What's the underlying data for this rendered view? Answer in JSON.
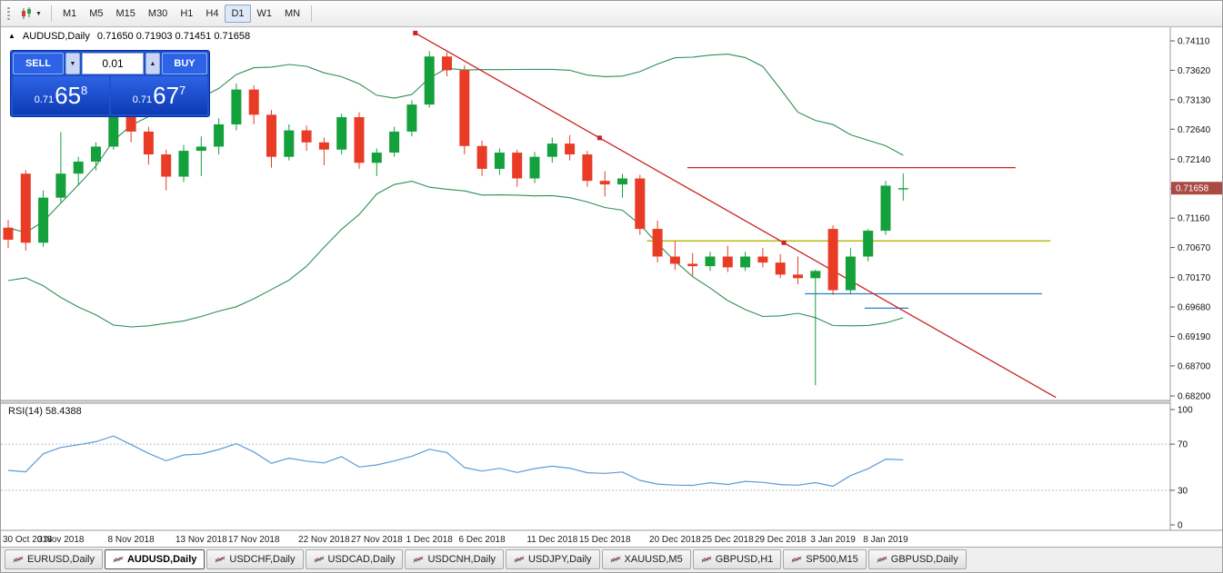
{
  "icons": {
    "collapse": "▲",
    "caret_down": "▼",
    "caret_up": "▲",
    "toolbar_caret": "▼"
  },
  "toolbar": {
    "timeframes": [
      "M1",
      "M5",
      "M15",
      "M30",
      "H1",
      "H4",
      "D1",
      "W1",
      "MN"
    ],
    "active_timeframe": "D1"
  },
  "chart": {
    "title_symbol": "AUDUSD,Daily",
    "title_ohlc": "0.71650 0.71903 0.71451 0.71658",
    "price_badge": "0.71658",
    "trade_panel": {
      "sell_label": "SELL",
      "buy_label": "BUY",
      "lot_value": "0.01",
      "sell_price": {
        "prefix": "0.71",
        "pips": "65",
        "pipette": "8"
      },
      "buy_price": {
        "prefix": "0.71",
        "pips": "67",
        "pipette": "7"
      }
    },
    "time_scale": [
      {
        "i": 0,
        "label": "30 Oct 2018"
      },
      {
        "i": 3,
        "label": "3 Nov 2018"
      },
      {
        "i": 7,
        "label": "8 Nov 2018"
      },
      {
        "i": 11,
        "label": "13 Nov 2018"
      },
      {
        "i": 14,
        "label": "17 Nov 2018"
      },
      {
        "i": 18,
        "label": "22 Nov 2018"
      },
      {
        "i": 21,
        "label": "27 Nov 2018"
      },
      {
        "i": 24,
        "label": "1 Dec 2018"
      },
      {
        "i": 27,
        "label": "6 Dec 2018"
      },
      {
        "i": 31,
        "label": "11 Dec 2018"
      },
      {
        "i": 34,
        "label": "15 Dec 2018"
      },
      {
        "i": 38,
        "label": "20 Dec 2018"
      },
      {
        "i": 41,
        "label": "25 Dec 2018"
      },
      {
        "i": 44,
        "label": "29 Dec 2018"
      },
      {
        "i": 47,
        "label": "3 Jan 2019"
      },
      {
        "i": 50,
        "label": "8 Jan 2019"
      }
    ]
  },
  "rsi_panel": {
    "label": "RSI(14) 58.4388",
    "scale_labels": [
      100,
      70,
      30,
      0
    ],
    "levels": [
      70,
      30
    ]
  },
  "tabs": {
    "items": [
      "EURUSD,Daily",
      "AUDUSD,Daily",
      "USDCHF,Daily",
      "USDCAD,Daily",
      "USDCNH,Daily",
      "USDJPY,Daily",
      "XAUUSD,M5",
      "GBPUSD,H1",
      "SP500,M15",
      "GBPUSD,Daily"
    ],
    "active_index": 1
  },
  "colors": {
    "up": "#14A03A",
    "down": "#E93C26",
    "band": "#2E8F55",
    "trend": "#CC2222",
    "hline_red": "#CC2222",
    "hline_yellow": "#B3B300",
    "hline_blue": "#2E7EC8",
    "rsi": "#5B9BD5",
    "badge": "#A94A44",
    "dotted": "#BBBBBB",
    "frame": "#9A9A9A",
    "panel_blue": "#1B52CC",
    "panel_dark": "#0C3BB4",
    "button_blue": "#2E63E6"
  },
  "chart_data": {
    "type": "candlestick",
    "symbol": "AUDUSD",
    "timeframe": "Daily",
    "price_axis": {
      "min": 0.682,
      "max": 0.7411,
      "labels": [
        0.7411,
        0.7362,
        0.7313,
        0.7264,
        0.7214,
        0.7165,
        0.7116,
        0.7067,
        0.7017,
        0.6968,
        0.6919,
        0.687,
        0.682
      ]
    },
    "rsi_axis": {
      "min": 0,
      "max": 100,
      "labels": [
        100,
        70,
        30,
        0
      ]
    },
    "candles": [
      {
        "t": "30 Oct",
        "o": 0.71,
        "h": 0.7113,
        "l": 0.7066,
        "c": 0.708
      },
      {
        "t": "31 Oct",
        "o": 0.719,
        "h": 0.7196,
        "l": 0.7062,
        "c": 0.7075
      },
      {
        "t": "1 Nov",
        "o": 0.7075,
        "h": 0.7162,
        "l": 0.7068,
        "c": 0.715
      },
      {
        "t": "2 Nov",
        "o": 0.715,
        "h": 0.7259,
        "l": 0.7142,
        "c": 0.719
      },
      {
        "t": "5 Nov",
        "o": 0.719,
        "h": 0.7218,
        "l": 0.717,
        "c": 0.721
      },
      {
        "t": "6 Nov",
        "o": 0.721,
        "h": 0.7242,
        "l": 0.7195,
        "c": 0.7235
      },
      {
        "t": "7 Nov",
        "o": 0.7235,
        "h": 0.7302,
        "l": 0.723,
        "c": 0.7292
      },
      {
        "t": "8 Nov",
        "o": 0.7292,
        "h": 0.731,
        "l": 0.7242,
        "c": 0.726
      },
      {
        "t": "9 Nov",
        "o": 0.726,
        "h": 0.7268,
        "l": 0.7205,
        "c": 0.7222
      },
      {
        "t": "12 Nov",
        "o": 0.7222,
        "h": 0.723,
        "l": 0.7162,
        "c": 0.7185
      },
      {
        "t": "13 Nov",
        "o": 0.7185,
        "h": 0.7238,
        "l": 0.7176,
        "c": 0.7228
      },
      {
        "t": "14 Nov",
        "o": 0.7228,
        "h": 0.7252,
        "l": 0.7186,
        "c": 0.7235
      },
      {
        "t": "15 Nov",
        "o": 0.7235,
        "h": 0.7282,
        "l": 0.7222,
        "c": 0.7272
      },
      {
        "t": "16 Nov",
        "o": 0.7272,
        "h": 0.734,
        "l": 0.7262,
        "c": 0.733
      },
      {
        "t": "19 Nov",
        "o": 0.733,
        "h": 0.7337,
        "l": 0.7272,
        "c": 0.7288
      },
      {
        "t": "20 Nov",
        "o": 0.7288,
        "h": 0.7296,
        "l": 0.72,
        "c": 0.7218
      },
      {
        "t": "21 Nov",
        "o": 0.7218,
        "h": 0.7272,
        "l": 0.7212,
        "c": 0.7262
      },
      {
        "t": "22 Nov",
        "o": 0.7262,
        "h": 0.727,
        "l": 0.7228,
        "c": 0.7242
      },
      {
        "t": "23 Nov",
        "o": 0.7242,
        "h": 0.725,
        "l": 0.7204,
        "c": 0.723
      },
      {
        "t": "26 Nov",
        "o": 0.723,
        "h": 0.729,
        "l": 0.7222,
        "c": 0.7284
      },
      {
        "t": "27 Nov",
        "o": 0.7284,
        "h": 0.7292,
        "l": 0.7198,
        "c": 0.7208
      },
      {
        "t": "28 Nov",
        "o": 0.7208,
        "h": 0.7232,
        "l": 0.7186,
        "c": 0.7225
      },
      {
        "t": "29 Nov",
        "o": 0.7225,
        "h": 0.7268,
        "l": 0.7218,
        "c": 0.726
      },
      {
        "t": "30 Nov",
        "o": 0.726,
        "h": 0.7312,
        "l": 0.7252,
        "c": 0.7305
      },
      {
        "t": "3 Dec",
        "o": 0.7305,
        "h": 0.7394,
        "l": 0.73,
        "c": 0.7385
      },
      {
        "t": "4 Dec",
        "o": 0.7385,
        "h": 0.7392,
        "l": 0.7352,
        "c": 0.7362
      },
      {
        "t": "5 Dec",
        "o": 0.7362,
        "h": 0.737,
        "l": 0.7222,
        "c": 0.7236
      },
      {
        "t": "6 Dec",
        "o": 0.7236,
        "h": 0.7245,
        "l": 0.7186,
        "c": 0.7198
      },
      {
        "t": "7 Dec",
        "o": 0.7198,
        "h": 0.7232,
        "l": 0.7188,
        "c": 0.7225
      },
      {
        "t": "10 Dec",
        "o": 0.7225,
        "h": 0.723,
        "l": 0.7168,
        "c": 0.7182
      },
      {
        "t": "11 Dec",
        "o": 0.7182,
        "h": 0.7226,
        "l": 0.7174,
        "c": 0.7218
      },
      {
        "t": "12 Dec",
        "o": 0.7218,
        "h": 0.725,
        "l": 0.7208,
        "c": 0.724
      },
      {
        "t": "13 Dec",
        "o": 0.724,
        "h": 0.7254,
        "l": 0.7212,
        "c": 0.7222
      },
      {
        "t": "14 Dec",
        "o": 0.7222,
        "h": 0.7228,
        "l": 0.7168,
        "c": 0.7178
      },
      {
        "t": "17 Dec",
        "o": 0.7178,
        "h": 0.7194,
        "l": 0.7152,
        "c": 0.7172
      },
      {
        "t": "18 Dec",
        "o": 0.7172,
        "h": 0.719,
        "l": 0.715,
        "c": 0.7182
      },
      {
        "t": "19 Dec",
        "o": 0.7182,
        "h": 0.7188,
        "l": 0.7088,
        "c": 0.7098
      },
      {
        "t": "20 Dec",
        "o": 0.7098,
        "h": 0.7112,
        "l": 0.7042,
        "c": 0.7052
      },
      {
        "t": "21 Dec",
        "o": 0.7052,
        "h": 0.7078,
        "l": 0.703,
        "c": 0.704
      },
      {
        "t": "24 Dec",
        "o": 0.704,
        "h": 0.7058,
        "l": 0.702,
        "c": 0.7036
      },
      {
        "t": "25 Dec",
        "o": 0.7036,
        "h": 0.706,
        "l": 0.7028,
        "c": 0.7052
      },
      {
        "t": "26 Dec",
        "o": 0.7052,
        "h": 0.707,
        "l": 0.7026,
        "c": 0.7034
      },
      {
        "t": "27 Dec",
        "o": 0.7034,
        "h": 0.706,
        "l": 0.7028,
        "c": 0.7052
      },
      {
        "t": "28 Dec",
        "o": 0.7052,
        "h": 0.7066,
        "l": 0.7034,
        "c": 0.7042
      },
      {
        "t": "31 Dec",
        "o": 0.7042,
        "h": 0.7056,
        "l": 0.7016,
        "c": 0.7022
      },
      {
        "t": "2 Jan",
        "o": 0.7022,
        "h": 0.7052,
        "l": 0.7006,
        "c": 0.7016
      },
      {
        "t": "3 Jan",
        "o": 0.7016,
        "h": 0.703,
        "l": 0.6838,
        "c": 0.7028
      },
      {
        "t": "4 Jan",
        "o": 0.7098,
        "h": 0.7104,
        "l": 0.6988,
        "c": 0.6996
      },
      {
        "t": "7 Jan",
        "o": 0.6996,
        "h": 0.7066,
        "l": 0.699,
        "c": 0.7052
      },
      {
        "t": "8 Jan",
        "o": 0.7052,
        "h": 0.7098,
        "l": 0.7044,
        "c": 0.7095
      },
      {
        "t": "9 Jan",
        "o": 0.7095,
        "h": 0.7178,
        "l": 0.7088,
        "c": 0.717
      },
      {
        "t": "10 Jan",
        "o": 0.7165,
        "h": 0.71903,
        "l": 0.71451,
        "c": 0.71658
      }
    ],
    "prehistory_closes": [
      0.7118,
      0.711,
      0.7096,
      0.708,
      0.7065,
      0.705,
      0.7042,
      0.7036,
      0.7058,
      0.7068,
      0.706,
      0.7045,
      0.7032,
      0.7028,
      0.704,
      0.7055,
      0.7062,
      0.704,
      0.7024,
      0.7048
    ],
    "indicators": {
      "bollinger": {
        "period": 20,
        "deviation": 2
      },
      "rsi": {
        "period": 14,
        "current_value": 58.4388
      }
    },
    "objects": {
      "trendline": {
        "i1": 23.2,
        "p1": 0.7424,
        "i2": 44.2,
        "p2": 0.7075,
        "ray_i": 59.7,
        "color": "#CC2222",
        "selected": true
      },
      "hlines": [
        {
          "price": 0.72,
          "i1": 38.7,
          "i2": 57.4,
          "color": "#CC2222"
        },
        {
          "price": 0.7078,
          "i1": 36.4,
          "i2": 59.4,
          "color": "#B3B300"
        },
        {
          "price": 0.699,
          "i1": 45.4,
          "i2": 58.9,
          "color": "#2E7EC8"
        },
        {
          "price": 0.6966,
          "i1": 48.8,
          "i2": 51.3,
          "color": "#2E7EC8"
        }
      ]
    }
  }
}
